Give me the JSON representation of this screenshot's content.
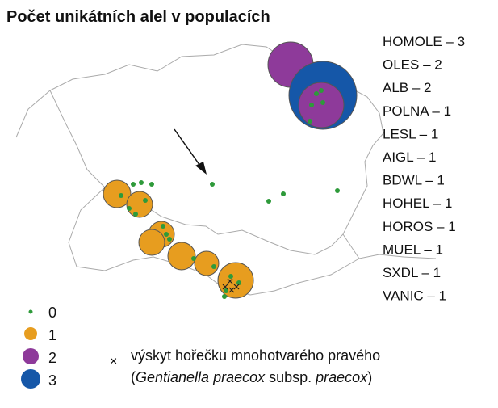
{
  "title": "Počet unikátních alel v populacích",
  "populations": [
    "HOMOLE – 3",
    "OLES – 2",
    "ALB – 2",
    "POLNA – 1",
    "LESL – 1",
    "AIGL – 1",
    "BDWL – 1",
    "HOHEL – 1",
    "HOROS – 1",
    "MUEL – 1",
    "SXDL – 1",
    "VANIC – 1"
  ],
  "legend": {
    "items": [
      "0",
      "1",
      "2",
      "3"
    ],
    "note": {
      "symbol": "×",
      "line1": "výskyt hořečku mnohotvarého pravého",
      "line2": [
        "(",
        "Gentianella praecox",
        " subsp. ",
        "praecox",
        ")"
      ]
    }
  }
}
